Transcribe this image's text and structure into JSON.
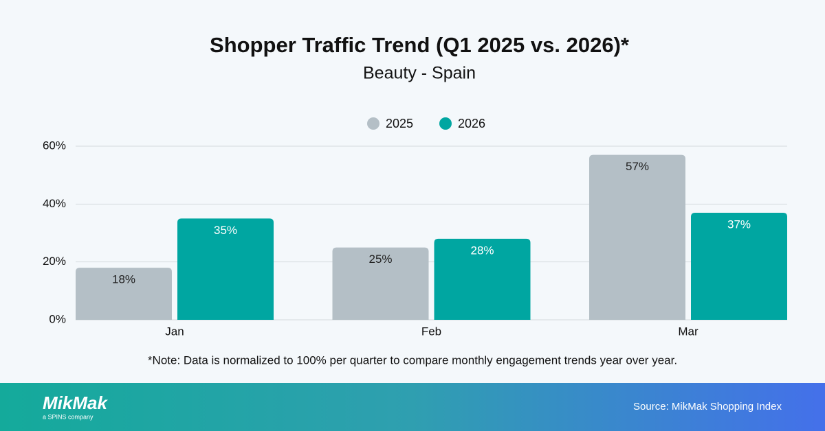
{
  "chart_data": {
    "type": "bar",
    "title": "Shopper Traffic Trend (Q1 2025 vs. 2026)*",
    "subtitle": "Beauty - Spain",
    "categories": [
      "Jan",
      "Feb",
      "Mar"
    ],
    "series": [
      {
        "name": "2025",
        "color": "#b4bfc6",
        "values": [
          18,
          25,
          57
        ],
        "value_labels": [
          "18%",
          "25%",
          "57%"
        ]
      },
      {
        "name": "2026",
        "color": "#00a6a1",
        "values": [
          35,
          28,
          37
        ],
        "value_labels": [
          "35%",
          "28%",
          "37%"
        ]
      }
    ],
    "ylim": [
      0,
      60
    ],
    "yticks": [
      {
        "value": 0,
        "label": "0%"
      },
      {
        "value": 20,
        "label": "20%"
      },
      {
        "value": 40,
        "label": "40%"
      },
      {
        "value": 60,
        "label": "60%"
      }
    ],
    "grid": true,
    "legend": "top",
    "note": "*Note: Data is normalized to 100% per quarter to compare monthly engagement trends year over year."
  },
  "footer": {
    "logo": "MikMak",
    "tagline": "a SPINS company",
    "source": "Source: MikMak Shopping Index"
  }
}
